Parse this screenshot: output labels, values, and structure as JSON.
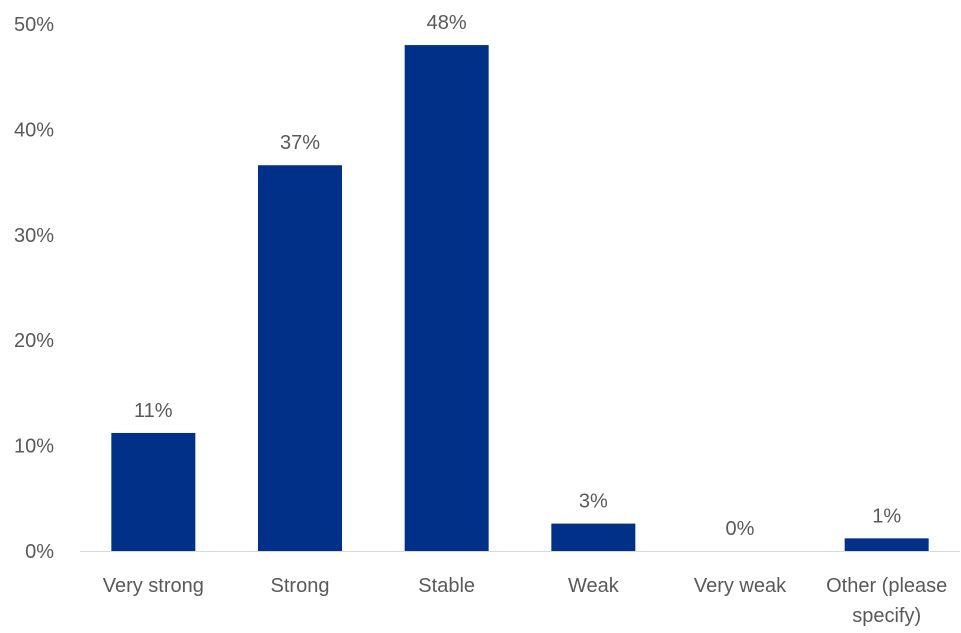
{
  "chart_data": {
    "type": "bar",
    "categories": [
      "Very strong",
      "Strong",
      "Stable",
      "Weak",
      "Very weak",
      "Other (please specify)"
    ],
    "category_lines": [
      [
        "Very strong"
      ],
      [
        "Strong"
      ],
      [
        "Stable"
      ],
      [
        "Weak"
      ],
      [
        "Very weak"
      ],
      [
        "Other (please",
        "specify)"
      ]
    ],
    "values": [
      11.2,
      36.6,
      48.0,
      2.6,
      0.0,
      1.2
    ],
    "data_labels": [
      "11%",
      "37%",
      "48%",
      "3%",
      "0%",
      "1%"
    ],
    "y_ticks": [
      0,
      10,
      20,
      30,
      40,
      50
    ],
    "y_tick_labels": [
      "0%",
      "10%",
      "20%",
      "30%",
      "40%",
      "50%"
    ],
    "ylim": [
      0,
      50
    ],
    "grid": false,
    "legend": "none",
    "colors": {
      "bar": "#003087",
      "text": "#595959",
      "axis": "#d9d9d9"
    }
  }
}
